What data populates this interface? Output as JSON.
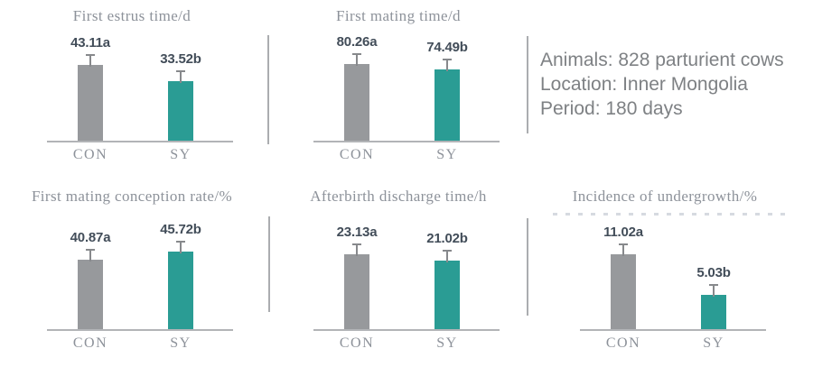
{
  "figure": {
    "description_panel": {
      "line1": "Animals: 828 parturient cows",
      "line2": "Location: Inner Mongolia",
      "line3": "Period: 180 days"
    }
  },
  "palette": {
    "background": "#ffffff",
    "series_colors": {
      "CON": "#97999c",
      "SY": "#2a9c94"
    },
    "value_label": "#424d59",
    "title_text": "#8d929a",
    "axis_line": "#b2b4b7",
    "error_bar": "#87898c",
    "divider": "#abadb0"
  },
  "chart_data": [
    {
      "type": "bar",
      "title": "First estrus time/d",
      "categories": [
        "CON",
        "SY"
      ],
      "values": [
        43.11,
        33.52
      ],
      "data_labels": [
        "43.11a",
        "33.52b"
      ],
      "ylim": [
        0,
        46
      ],
      "grid": false,
      "legend": false,
      "error_bars": true
    },
    {
      "type": "bar",
      "title": "First mating time/d",
      "categories": [
        "CON",
        "SY"
      ],
      "values": [
        80.26,
        74.49
      ],
      "data_labels": [
        "80.26a",
        "74.49b"
      ],
      "ylim": [
        0,
        85
      ],
      "grid": false,
      "legend": false,
      "error_bars": true
    },
    {
      "type": "bar",
      "title": "First mating conception rate/%",
      "categories": [
        "CON",
        "SY"
      ],
      "values": [
        40.87,
        45.72
      ],
      "data_labels": [
        "40.87a",
        "45.72b"
      ],
      "ylim": [
        0,
        48
      ],
      "grid": false,
      "legend": false,
      "error_bars": true
    },
    {
      "type": "bar",
      "title": "Afterbirth discharge time/h",
      "categories": [
        "CON",
        "SY"
      ],
      "values": [
        23.13,
        21.02
      ],
      "data_labels": [
        "23.13a",
        "21.02b"
      ],
      "ylim": [
        0,
        25
      ],
      "grid": false,
      "legend": false,
      "error_bars": true
    },
    {
      "type": "bar",
      "title": "Incidence of undergrowth/%",
      "categories": [
        "CON",
        "SY"
      ],
      "values": [
        11.02,
        5.03
      ],
      "data_labels": [
        "11.02a",
        "5.03b"
      ],
      "ylim": [
        0,
        12
      ],
      "grid": false,
      "legend": false,
      "error_bars": true
    }
  ]
}
